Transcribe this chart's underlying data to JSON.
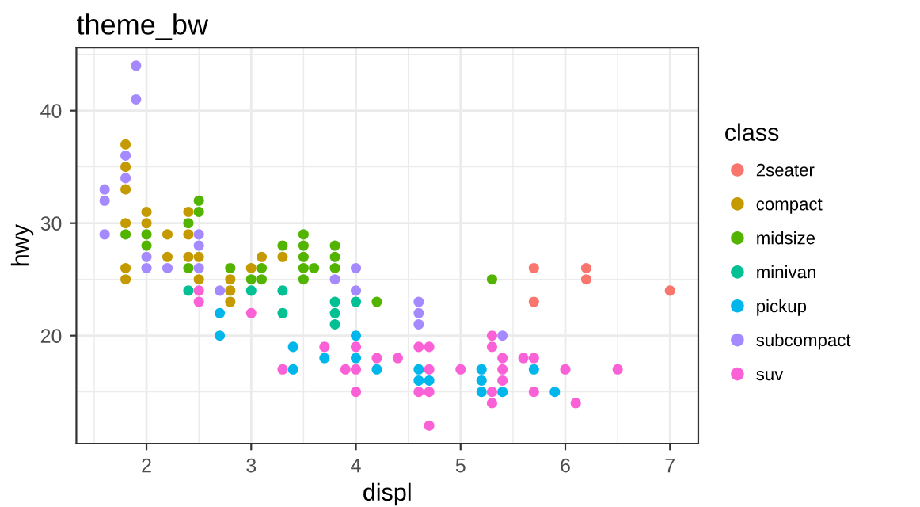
{
  "chart_data": {
    "type": "scatter",
    "title": "theme_bw",
    "xlabel": "displ",
    "ylabel": "hwy",
    "legend_title": "class",
    "legend": "right",
    "grid": true,
    "marker": "circle",
    "xlim": [
      1.33,
      7.27
    ],
    "ylim": [
      10.4,
      45.6
    ],
    "xticks": [
      2,
      3,
      4,
      5,
      6,
      7
    ],
    "yticks": [
      20,
      30,
      40
    ],
    "series": [
      {
        "name": "2seater",
        "color": "#F8766D",
        "x": [
          5.7,
          5.7,
          6.2,
          6.2,
          7.0
        ],
        "values": [
          26,
          23,
          26,
          25,
          24
        ]
      },
      {
        "name": "compact",
        "color": "#C49A00",
        "x": [
          1.8,
          1.8,
          1.8,
          1.8,
          1.8,
          1.8,
          2.0,
          2.0,
          2.2,
          2.2,
          2.4,
          2.4,
          2.4,
          2.5,
          2.5,
          2.8,
          2.8,
          2.8,
          3.0,
          3.1,
          3.3
        ],
        "values": [
          37,
          35,
          33,
          30,
          26,
          25,
          31,
          30,
          29,
          27,
          31,
          29,
          27,
          27,
          25,
          25,
          24,
          23,
          26,
          27,
          27
        ]
      },
      {
        "name": "midsize",
        "color": "#53B400",
        "x": [
          1.8,
          2.0,
          2.0,
          2.4,
          2.4,
          2.5,
          2.5,
          2.8,
          3.0,
          3.1,
          3.1,
          3.3,
          3.5,
          3.5,
          3.5,
          3.5,
          3.5,
          3.6,
          3.8,
          3.8,
          3.8,
          4.2,
          5.3
        ],
        "values": [
          29,
          29,
          28,
          30,
          26,
          32,
          31,
          26,
          25,
          26,
          25,
          28,
          29,
          28,
          27,
          26,
          25,
          26,
          28,
          27,
          26,
          23,
          25
        ]
      },
      {
        "name": "minivan",
        "color": "#00C094",
        "x": [
          2.4,
          3.0,
          3.3,
          3.3,
          3.8,
          3.8,
          3.8,
          4.0
        ],
        "values": [
          24,
          24,
          24,
          22,
          23,
          22,
          21,
          23
        ]
      },
      {
        "name": "pickup",
        "color": "#00B6EB",
        "x": [
          2.7,
          2.7,
          3.4,
          3.4,
          3.7,
          4.0,
          4.0,
          4.2,
          4.6,
          4.6,
          4.7,
          5.2,
          5.2,
          5.2,
          5.4,
          5.7,
          5.9
        ],
        "values": [
          22,
          20,
          19,
          17,
          18,
          20,
          18,
          17,
          17,
          16,
          16,
          17,
          16,
          15,
          15,
          17,
          15
        ]
      },
      {
        "name": "subcompact",
        "color": "#A58AFF",
        "x": [
          1.6,
          1.6,
          1.6,
          1.8,
          1.8,
          1.9,
          1.9,
          2.0,
          2.0,
          2.2,
          2.5,
          2.5,
          2.5,
          2.7,
          3.8,
          4.0,
          4.0,
          4.6,
          4.6,
          4.6,
          5.4
        ],
        "values": [
          33,
          32,
          29,
          36,
          34,
          44,
          41,
          27,
          26,
          26,
          29,
          28,
          26,
          24,
          25,
          26,
          24,
          23,
          22,
          21,
          20
        ]
      },
      {
        "name": "suv",
        "color": "#FB61D7",
        "x": [
          2.5,
          2.5,
          3.0,
          3.3,
          3.7,
          3.9,
          4.0,
          4.0,
          4.0,
          4.2,
          4.4,
          4.6,
          4.6,
          4.7,
          4.7,
          4.7,
          4.7,
          5.0,
          5.3,
          5.3,
          5.3,
          5.3,
          5.4,
          5.4,
          5.4,
          5.6,
          5.7,
          5.7,
          6.0,
          6.1,
          6.5
        ],
        "values": [
          24,
          23,
          22,
          17,
          19,
          17,
          19,
          17,
          15,
          18,
          18,
          19,
          15,
          19,
          17,
          15,
          12,
          17,
          20,
          19,
          15,
          14,
          18,
          17,
          16,
          18,
          18,
          15,
          17,
          14,
          17
        ]
      }
    ]
  }
}
